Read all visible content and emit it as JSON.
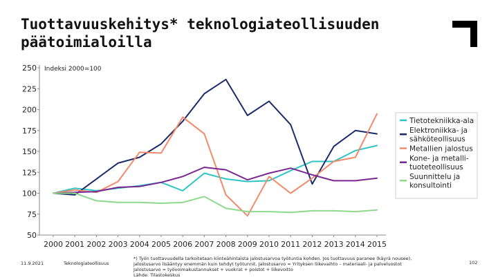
{
  "title_lines": [
    "Tuottavuuskehitys* teknologiateollisuuden",
    "päätoimialoilla"
  ],
  "footer": {
    "date": "11.9.2021",
    "company": "Teknologiateollisuus",
    "page": "102",
    "note_lines": [
      "*) Työn tuottavuudella tarkoitetaan kiinteähintaista jalostusarvoa työtuntia kohden. Jos tuottavuus paranee (käyrä nousee),",
      "jalostusarvo lisääntyy enemmän kuin tehdyt työtunnit. Jalostusarvo = Yrityksen liikevaihto – materiaali- ja palveluostot",
      "Jalostusarvo = työvoimakustannukset + vuokrat + poistot + liikevoitto",
      "Lähde: Tilastokeskus"
    ]
  },
  "chart_data": {
    "type": "line",
    "title": "",
    "annotation": "Indeksi 2000=100",
    "xlabel": "",
    "ylabel": "",
    "x": [
      2000,
      2001,
      2002,
      2003,
      2004,
      2005,
      2006,
      2007,
      2008,
      2009,
      2010,
      2011,
      2012,
      2013,
      2014,
      2015
    ],
    "x_tick_labels": [
      "2000",
      "2001",
      "2002",
      "2003",
      "2004",
      "2005",
      "2006",
      "2007",
      "2008",
      "2009",
      "2010",
      "2011",
      "2012",
      "2013",
      "2014",
      "2015"
    ],
    "ylim": [
      50,
      250
    ],
    "y_ticks": [
      50,
      75,
      100,
      125,
      150,
      175,
      200,
      225,
      250
    ],
    "y_tick_labels": [
      "50",
      "75",
      "100",
      "125",
      "150",
      "175",
      "200",
      "225",
      "250"
    ],
    "grid": false,
    "legend_position": "right",
    "series": [
      {
        "name": "Tietotekniikka-ala",
        "label_lines": [
          "Tietotekniikka-ala"
        ],
        "color": "#2ec4c4",
        "values": [
          100,
          106,
          103,
          106,
          109,
          113,
          103,
          124,
          117,
          114,
          115,
          127,
          138,
          138,
          151,
          157
        ]
      },
      {
        "name": "Elektroniikka- ja sähköteollisuus",
        "label_lines": [
          "Elektroniikka- ja",
          "sähköteollisuus"
        ],
        "color": "#1b2a6b",
        "values": [
          100,
          98,
          117,
          136,
          143,
          159,
          186,
          219,
          236,
          193,
          210,
          182,
          111,
          156,
          175,
          171
        ]
      },
      {
        "name": "Metallien jalostus",
        "label_lines": [
          "Metallien jalostus"
        ],
        "color": "#f08a6b",
        "values": [
          100,
          104,
          101,
          114,
          149,
          148,
          191,
          171,
          98,
          73,
          120,
          100,
          118,
          138,
          143,
          195
        ]
      },
      {
        "name": "Kone- ja metallituoteteollisuus",
        "label_lines": [
          "Kone- ja metalli-",
          "tuoteteollisuus"
        ],
        "color": "#7a2690",
        "values": [
          100,
          101,
          102,
          107,
          108,
          113,
          120,
          131,
          128,
          116,
          124,
          130,
          122,
          115,
          115,
          118
        ]
      },
      {
        "name": "Suunnittelu ja konsultointi",
        "label_lines": [
          "Suunnittelu ja",
          "konsultointi"
        ],
        "color": "#8fd98c",
        "values": [
          100,
          100,
          91,
          89,
          89,
          88,
          89,
          96,
          82,
          78,
          78,
          77,
          79,
          79,
          78,
          80
        ]
      }
    ]
  }
}
